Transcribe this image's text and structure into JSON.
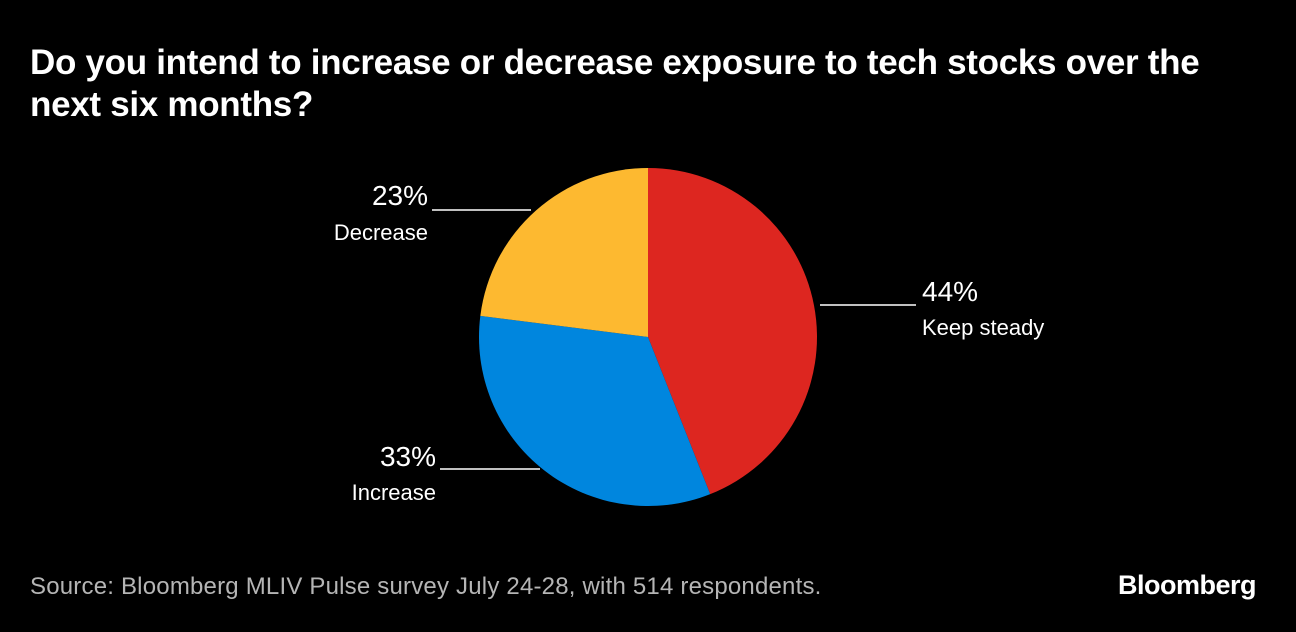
{
  "chart_data": {
    "type": "pie",
    "title": "Do you intend to increase or decrease exposure to tech stocks over the next six months?",
    "slices": [
      {
        "label": "Keep steady",
        "value": 44,
        "display": "44%",
        "color": "#dd2620"
      },
      {
        "label": "Increase",
        "value": 33,
        "display": "33%",
        "color": "#0086de"
      },
      {
        "label": "Decrease",
        "value": 23,
        "display": "23%",
        "color": "#fdb930"
      }
    ],
    "start_angle_deg": 0,
    "direction": "clockwise"
  },
  "footer": {
    "source": "Source: Bloomberg MLIV Pulse survey July 24-28, with 514 respondents.",
    "brand": "Bloomberg"
  },
  "colors": {
    "background": "#000000",
    "text": "#ffffff",
    "source_text": "#b5b5b5",
    "leader_line": "#ffffff"
  }
}
